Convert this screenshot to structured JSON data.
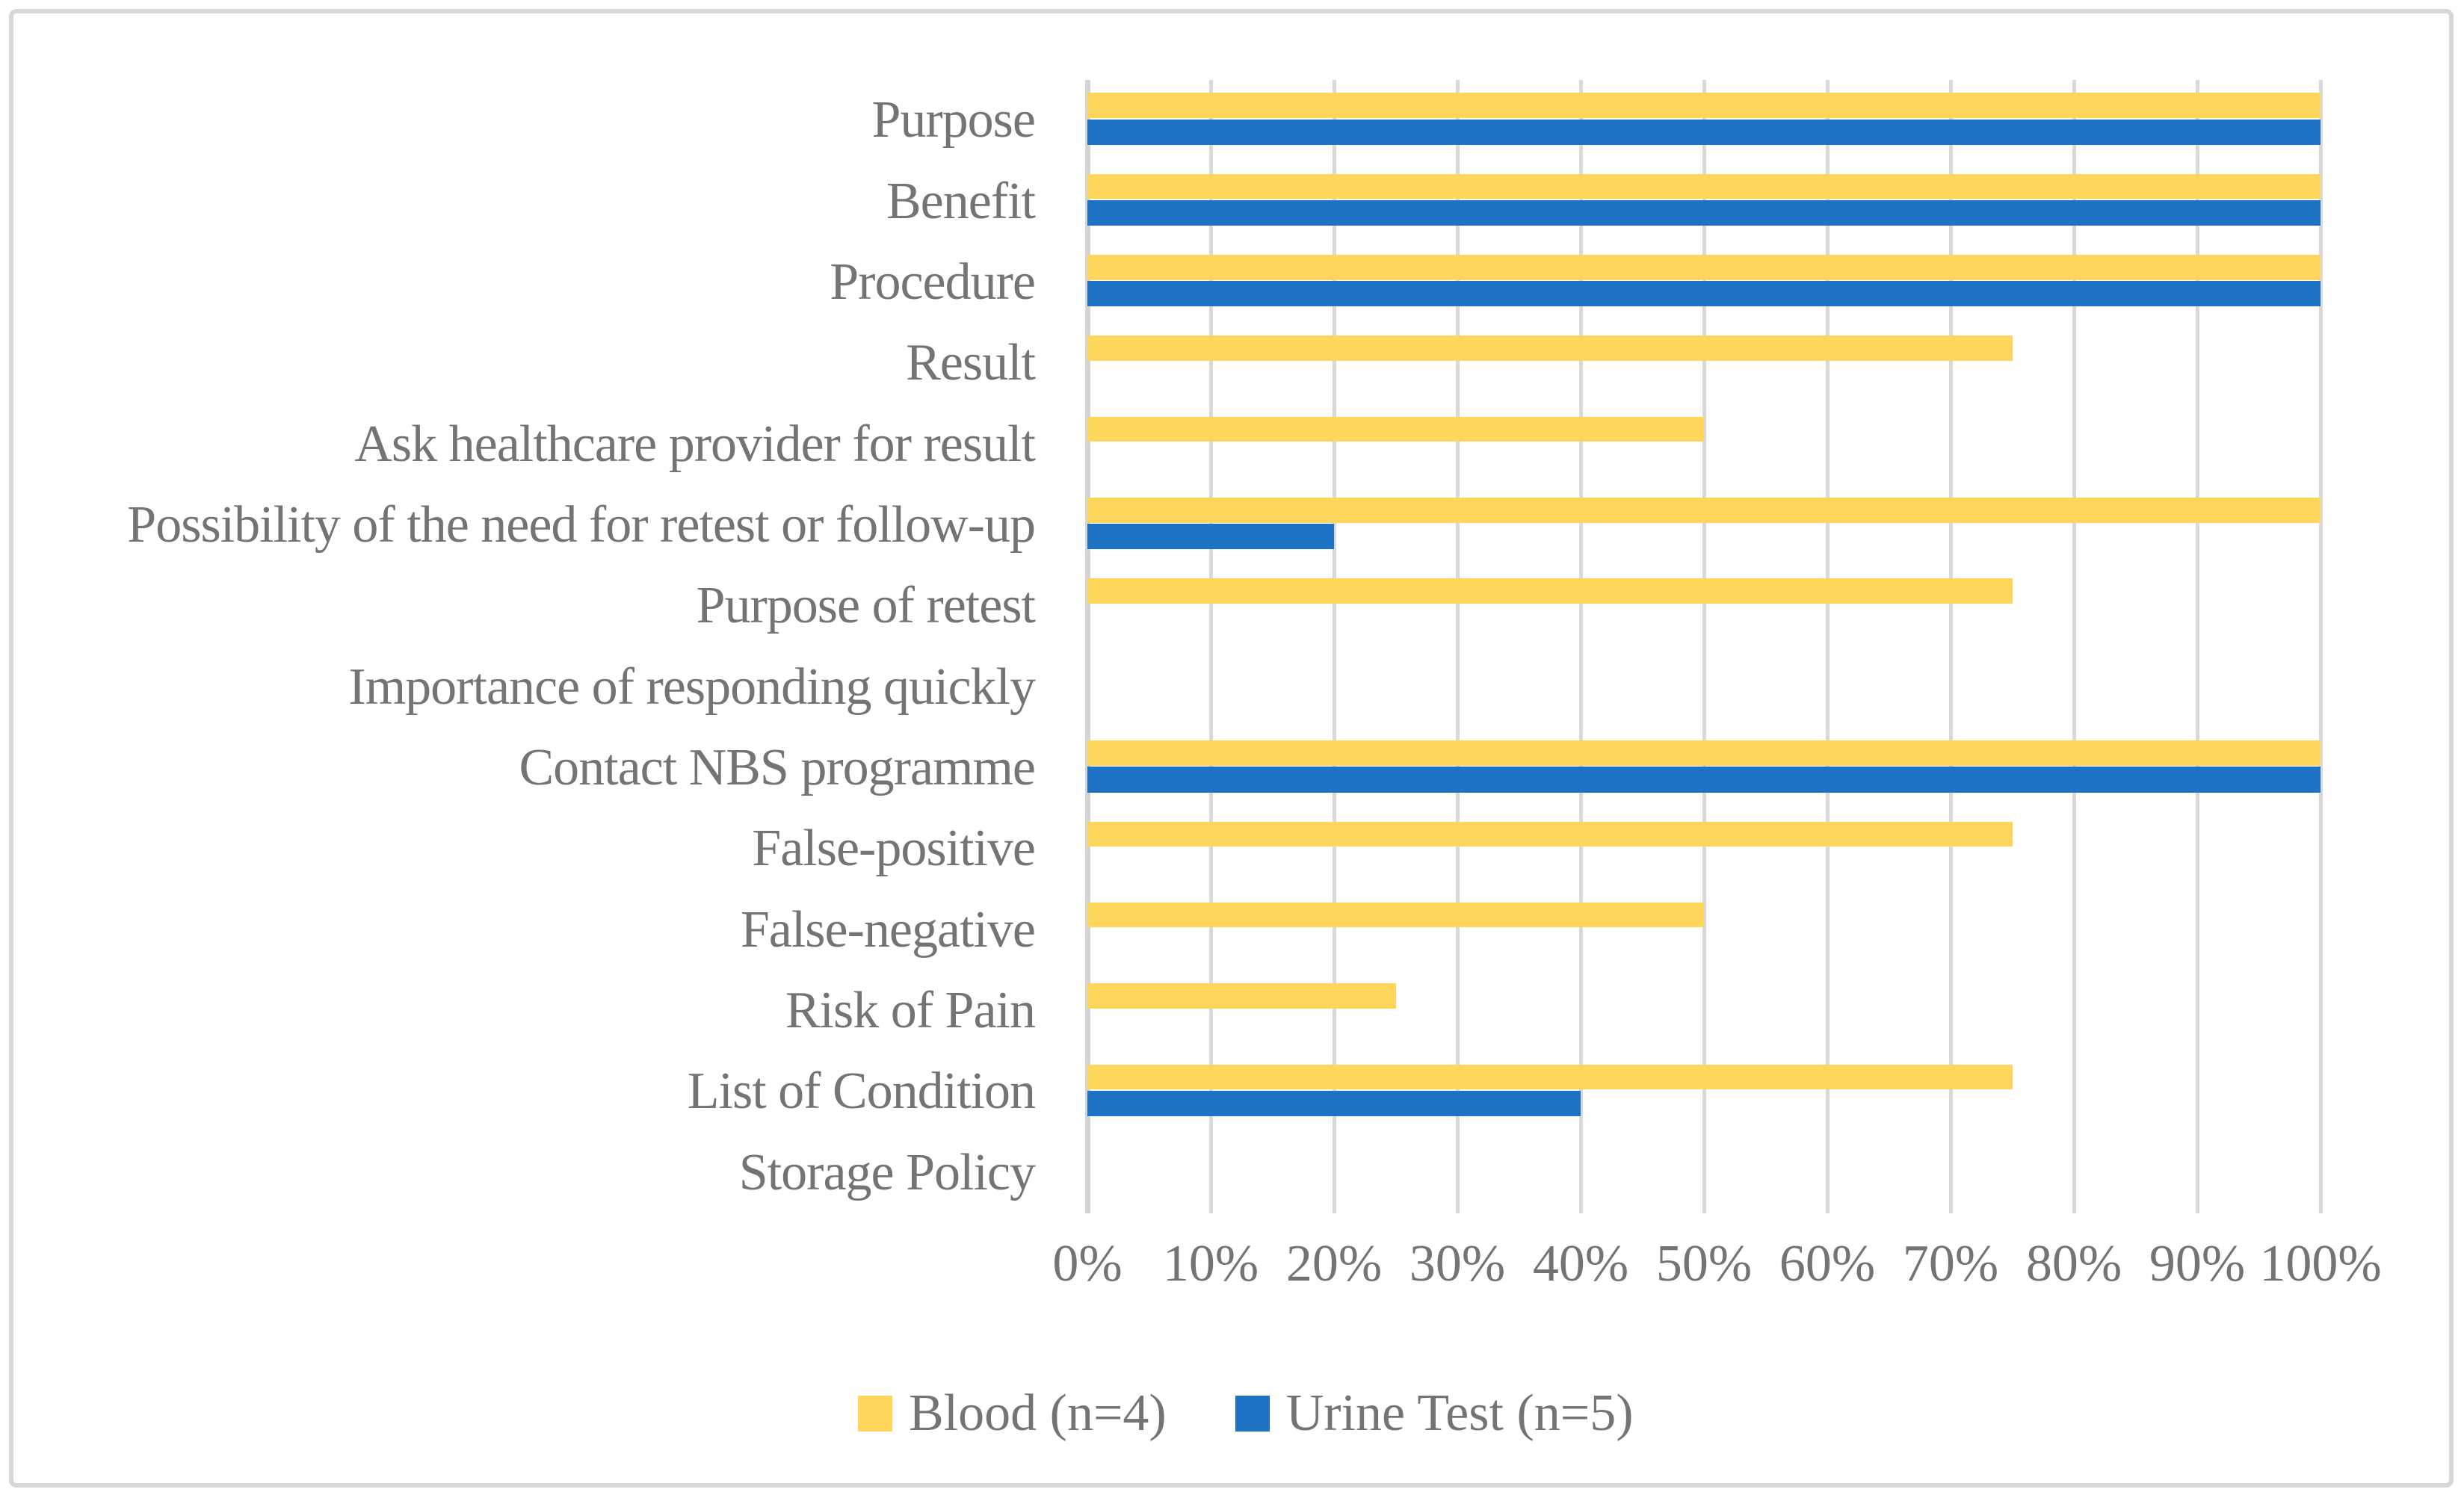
{
  "chart_data": {
    "type": "bar",
    "orientation": "horizontal",
    "title": "",
    "xlabel": "",
    "ylabel": "",
    "grid": true,
    "legend_position": "bottom",
    "xlim": [
      0,
      100
    ],
    "x_ticks": [
      "0%",
      "10%",
      "20%",
      "30%",
      "40%",
      "50%",
      "60%",
      "70%",
      "80%",
      "90%",
      "100%"
    ],
    "categories": [
      "Purpose",
      "Benefit",
      "Procedure",
      "Result",
      "Ask healthcare provider for result",
      "Possibility of the need for retest or follow-up",
      "Purpose of retest",
      "Importance of responding quickly",
      "Contact NBS programme",
      "False-positive",
      "False-negative",
      "Risk of Pain",
      "List of Condition",
      "Storage Policy"
    ],
    "series": [
      {
        "name": "Blood (n=4)",
        "color": "#FFD65C",
        "values": [
          100,
          100,
          100,
          75,
          50,
          100,
          75,
          0,
          100,
          75,
          50,
          25,
          75,
          0
        ]
      },
      {
        "name": "Urine Test (n=5)",
        "color": "#1E72C4",
        "values": [
          100,
          100,
          100,
          0,
          0,
          20,
          0,
          0,
          100,
          0,
          0,
          0,
          40,
          0
        ]
      }
    ]
  },
  "colors": {
    "background": "#FFFFFF",
    "frame_border": "#D7D7D7",
    "gridline": "#D9D9D9",
    "axis_line": "#D4D4D4",
    "text": "#747474"
  }
}
